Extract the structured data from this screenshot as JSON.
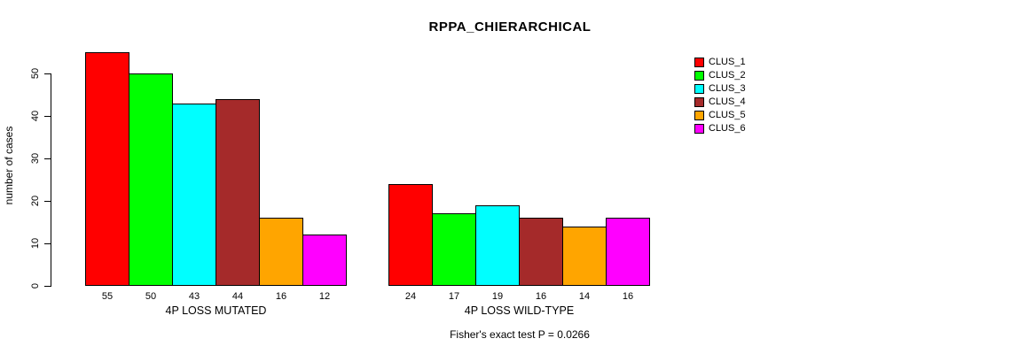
{
  "chart_data": {
    "type": "bar",
    "title": "RPPA_CHIERARCHICAL",
    "ylabel": "number of cases",
    "xlabel": "",
    "ylim": [
      0,
      55
    ],
    "y_ticks": [
      0,
      10,
      20,
      30,
      40,
      50
    ],
    "grid": false,
    "legend_position": "right",
    "legend_labels": [
      "CLUS_1",
      "CLUS_2",
      "CLUS_3",
      "CLUS_4",
      "CLUS_5",
      "CLUS_6"
    ],
    "series_colors": [
      "#FF0000",
      "#00FF00",
      "#00FFFF",
      "#A52A2A",
      "#FFA500",
      "#FF00FF"
    ],
    "groups": [
      {
        "label": "4P LOSS MUTATED",
        "values": [
          55,
          50,
          43,
          44,
          16,
          12
        ]
      },
      {
        "label": "4P LOSS WILD-TYPE",
        "values": [
          24,
          17,
          19,
          16,
          14,
          16
        ]
      }
    ],
    "bar_value_labels_shown": true,
    "annotation": "Fisher's exact test P = 0.0266"
  }
}
